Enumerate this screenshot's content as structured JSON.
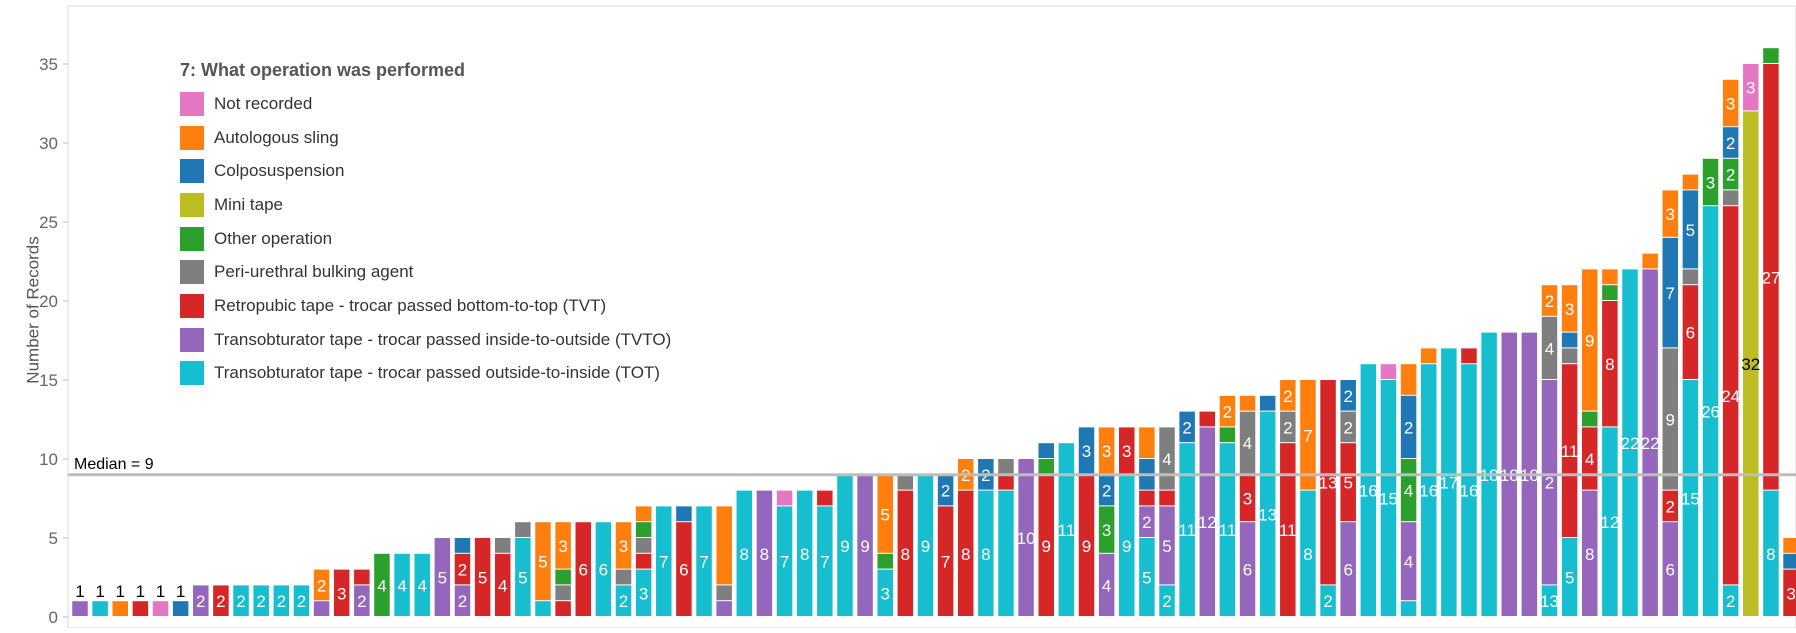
{
  "chart_data": {
    "type": "bar",
    "stacked": true,
    "ylabel": "Number of Records",
    "ylim": [
      0,
      37.5
    ],
    "y_ticks": [
      0,
      5,
      10,
      15,
      20,
      25,
      30,
      35
    ],
    "grid": false,
    "legend_title": "7: What operation was performed",
    "legend_position": "top-left",
    "categories_order": [
      "TOT",
      "TVTO",
      "TVT",
      "Bulking",
      "Other",
      "Mini",
      "Colpo",
      "Autologous",
      "NotRec"
    ],
    "legend": [
      {
        "key": "NotRec",
        "label": "Not recorded",
        "color": "#e377c2"
      },
      {
        "key": "Autologous",
        "label": "Autologous sling",
        "color": "#ff7f0e"
      },
      {
        "key": "Colpo",
        "label": "Colposuspension",
        "color": "#1f77b4"
      },
      {
        "key": "Mini",
        "label": "Mini tape",
        "color": "#bcbd22"
      },
      {
        "key": "Other",
        "label": "Other operation",
        "color": "#2ca02c"
      },
      {
        "key": "Bulking",
        "label": "Peri-urethral bulking agent",
        "color": "#7f7f7f"
      },
      {
        "key": "TVT",
        "label": "Retropubic tape - trocar passed bottom-to-top (TVT)",
        "color": "#d62728"
      },
      {
        "key": "TVTO",
        "label": "Transobturator tape - trocar passed inside-to-outside (TVTO)",
        "color": "#9467bd"
      },
      {
        "key": "TOT",
        "label": "Transobturator tape - trocar passed outside-to-inside (TOT)",
        "color": "#17becf"
      }
    ],
    "reference_line": {
      "label": "Median = 9",
      "value": 9
    },
    "bars": [
      {
        "TVTO": 1
      },
      {
        "TOT": 1
      },
      {
        "Autologous": 1
      },
      {
        "TVT": 1
      },
      {
        "NotRec": 1
      },
      {
        "Colpo": 1
      },
      {
        "TVTO": 2
      },
      {
        "TVT": 2
      },
      {
        "TOT": 2
      },
      {
        "TOT": 2
      },
      {
        "TOT": 2
      },
      {
        "TOT": 2
      },
      {
        "TVTO": 1,
        "Autologous": 2
      },
      {
        "TVT": 3
      },
      {
        "TVTO": 2,
        "TVT": 1
      },
      {
        "Other": 4
      },
      {
        "TOT": 4
      },
      {
        "TOT": 4
      },
      {
        "TVTO": 5
      },
      {
        "TVTO": 2,
        "TVT": 2,
        "Colpo": 1
      },
      {
        "TVT": 5
      },
      {
        "TVT": 4,
        "Bulking": 1
      },
      {
        "TOT": 5,
        "Bulking": 1
      },
      {
        "TOT": 1,
        "Autologous": 5
      },
      {
        "TVT": 1,
        "Bulking": 1,
        "Other": 1,
        "Autologous": 3
      },
      {
        "TVT": 6
      },
      {
        "TOT": 6
      },
      {
        "TOT": 2,
        "Bulking": 1,
        "Autologous": 3
      },
      {
        "TOT": 3,
        "TVT": 1,
        "Bulking": 1,
        "Other": 1,
        "Autologous": 1
      },
      {
        "TOT": 7
      },
      {
        "TVT": 6,
        "Colpo": 1
      },
      {
        "TOT": 7
      },
      {
        "Bulking": 1,
        "Autologous": 5,
        "TVTO": 1
      },
      {
        "TOT": 8
      },
      {
        "TVTO": 8
      },
      {
        "TOT": 7,
        "NotRec": 1
      },
      {
        "TOT": 8
      },
      {
        "TOT": 7,
        "TVT": 1
      },
      {
        "TOT": 9
      },
      {
        "TVTO": 9
      },
      {
        "TOT": 3,
        "Other": 1,
        "Autologous": 5
      },
      {
        "TVT": 8,
        "Bulking": 1
      },
      {
        "TOT": 9
      },
      {
        "TVT": 7,
        "Colpo": 2
      },
      {
        "TVT": 8,
        "Autologous": 2
      },
      {
        "TOT": 8,
        "Colpo": 2
      },
      {
        "TVT": 1,
        "TOT": 8,
        "Bulking": 1
      },
      {
        "TVTO": 10
      },
      {
        "TVT": 9,
        "Other": 1,
        "Colpo": 1
      },
      {
        "TOT": 11
      },
      {
        "TVT": 9,
        "Colpo": 3
      },
      {
        "TVTO": 4,
        "Other": 3,
        "Colpo": 2,
        "Autologous": 3
      },
      {
        "TOT": 9,
        "TVT": 3
      },
      {
        "TOT": 5,
        "TVTO": 2,
        "Colpo": 2,
        "Autologous": 2,
        "TVT": 1
      },
      {
        "TOT": 2,
        "TVTO": 5,
        "TVT": 1,
        "Bulking": 4
      },
      {
        "TOT": 11,
        "Colpo": 2
      },
      {
        "TVTO": 12,
        "TVT": 1
      },
      {
        "TOT": 11,
        "Other": 1,
        "Autologous": 2
      },
      {
        "TVTO": 6,
        "TVT": 3,
        "Bulking": 4,
        "Autologous": 1
      },
      {
        "TOT": 13,
        "Colpo": 1
      },
      {
        "TVT": 11,
        "Bulking": 2,
        "Autologous": 2
      },
      {
        "TOT": 8,
        "Autologous": 7
      },
      {
        "TOT": 2,
        "TVT": 13
      },
      {
        "TVTO": 6,
        "TVT": 5,
        "Bulking": 2,
        "Colpo": 2
      },
      {
        "TOT": 16
      },
      {
        "TOT": 15,
        "NotRec": 1
      },
      {
        "TVTO": 5,
        "Other": 4,
        "Colpo": 4,
        "Autologous": 2,
        "TOT": 1
      },
      {
        "TOT": 16,
        "Autologous": 1
      },
      {
        "TOT": 17
      },
      {
        "TOT": 16,
        "TVT": 1
      },
      {
        "TOT": 18
      },
      {
        "TVTO": 18
      },
      {
        "TVTO": 18
      },
      {
        "TVTO": 13,
        "TOT": 2,
        "Bulking": 4,
        "Autologous": 2
      },
      {
        "TOT": 5,
        "TVT": 11,
        "Bulking": 1,
        "Colpo": 1,
        "Autologous": 3
      },
      {
        "TVTO": 8,
        "TVT": 4,
        "Other": 1,
        "Autologous": 9
      },
      {
        "TOT": 12,
        "TVT": 8,
        "Other": 1,
        "Autologous": 1
      },
      {
        "TOT": 22
      },
      {
        "TVTO": 22,
        "Autologous": 1
      },
      {
        "TVTO": 6,
        "TVT": 2,
        "Bulking": 9,
        "Colpo": 7,
        "Autologous": 3
      },
      {
        "TOT": 15,
        "TVT": 6,
        "Bulking": 1,
        "Colpo": 5,
        "Autologous": 1
      },
      {
        "TOT": 26,
        "Other": 3
      },
      {
        "TOT": 2,
        "TVT": 24,
        "Bulking": 1,
        "Other": 2,
        "Colpo": 2,
        "Autologous": 3
      },
      {
        "Mini": 32,
        "NotRec": 3
      },
      {
        "TOT": 8,
        "TVT": 27,
        "Other": 1
      },
      {
        "TVT": 3,
        "Colpo": 1,
        "Autologous": 1
      }
    ],
    "segment_labels": [
      [
        "1"
      ],
      [
        "1"
      ],
      [
        "1"
      ],
      [
        "1"
      ],
      [
        "1"
      ],
      [
        "1"
      ],
      [
        "2"
      ],
      [
        "2"
      ],
      [
        "2"
      ],
      [
        "2"
      ],
      [
        "2"
      ],
      [
        "2"
      ],
      [
        "",
        "2"
      ],
      [
        "3"
      ],
      [
        "2",
        ""
      ],
      [
        "4"
      ],
      [
        "4"
      ],
      [
        "4"
      ],
      [
        "5"
      ],
      [
        "2",
        "2",
        ""
      ],
      [
        "5"
      ],
      [
        "4",
        ""
      ],
      [
        "5",
        ""
      ],
      [
        "",
        "5"
      ],
      [
        "",
        "",
        "",
        "3"
      ],
      [
        "6"
      ],
      [
        "6"
      ],
      [
        "2",
        "",
        "3"
      ],
      [
        "3",
        "",
        "",
        "",
        ""
      ],
      [
        "7"
      ],
      [
        "6",
        ""
      ],
      [
        "7"
      ],
      [
        "",
        "5",
        ""
      ],
      [
        "8"
      ],
      [
        "8"
      ],
      [
        "7",
        ""
      ],
      [
        "8"
      ],
      [
        "7",
        ""
      ],
      [
        "9"
      ],
      [
        "9"
      ],
      [
        "3",
        "",
        "5"
      ],
      [
        "8",
        ""
      ],
      [
        "9"
      ],
      [
        "7",
        "2"
      ],
      [
        "8",
        "2"
      ],
      [
        "8",
        "2"
      ],
      [
        "",
        "8",
        ""
      ],
      [
        "10"
      ],
      [
        "9",
        "",
        ""
      ],
      [
        "11"
      ],
      [
        "9",
        "3"
      ],
      [
        "4",
        "3",
        "2",
        "3"
      ],
      [
        "9",
        "3"
      ],
      [
        "5",
        "2",
        "2",
        "",
        ""
      ],
      [
        "2",
        "5",
        "",
        "4"
      ],
      [
        "11",
        "2"
      ],
      [
        "12",
        ""
      ],
      [
        "11",
        "",
        "2"
      ],
      [
        "6",
        "3",
        "4",
        ""
      ],
      [
        "13",
        ""
      ],
      [
        "11",
        "2",
        "2"
      ],
      [
        "8",
        "7"
      ],
      [
        "2",
        "13"
      ],
      [
        "6",
        "5",
        "2",
        "2"
      ],
      [
        "16"
      ],
      [
        "15",
        ""
      ],
      [
        "5",
        "4",
        "4",
        "2",
        ""
      ],
      [
        "16",
        ""
      ],
      [
        "17"
      ],
      [
        "16",
        ""
      ],
      [
        "18"
      ],
      [
        "18"
      ],
      [
        "18"
      ],
      [
        "13",
        "2",
        "4",
        "2"
      ],
      [
        "5",
        "11",
        "",
        "",
        "3"
      ],
      [
        "8",
        "4",
        "",
        "9"
      ],
      [
        "12",
        "8",
        "",
        ""
      ],
      [
        "22"
      ],
      [
        "22",
        ""
      ],
      [
        "6",
        "2",
        "9",
        "7",
        "3"
      ],
      [
        "15",
        "6",
        "",
        "5",
        ""
      ],
      [
        "26",
        "3"
      ],
      [
        "2",
        "24",
        "",
        "2",
        "2",
        "3"
      ],
      [
        "32",
        "3"
      ],
      [
        "8",
        "27",
        ""
      ],
      [
        "3",
        "",
        ""
      ]
    ]
  }
}
